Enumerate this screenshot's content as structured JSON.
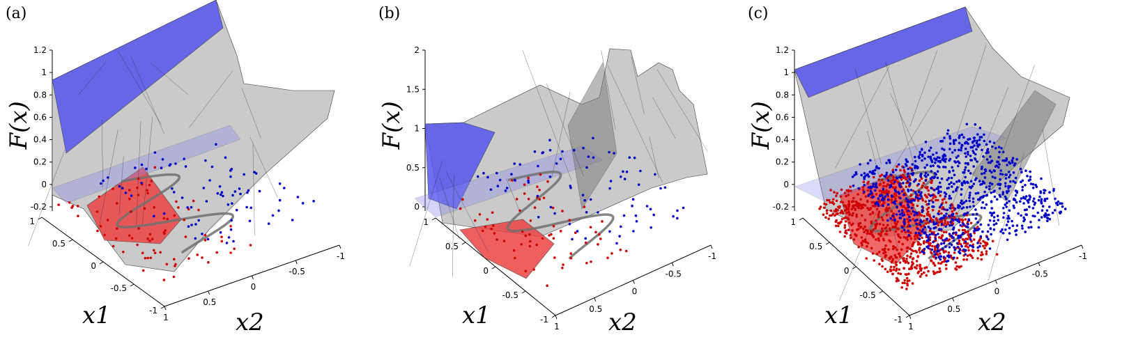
{
  "chart_data": [
    {
      "type": "scatter",
      "panel_label": "(a)",
      "zlabel": "F(x)",
      "xlabel": "x1",
      "ylabel": "x2",
      "x1_ticks": [
        "1",
        "0.5",
        "0",
        "-0.5",
        "-1"
      ],
      "x2_ticks": [
        "1",
        "0.5",
        "0",
        "-0.5",
        "-1"
      ],
      "z_ticks": [
        "-0.2",
        "0",
        "0.2",
        "0.4",
        "0.6",
        "0.8",
        "1",
        "1.2"
      ],
      "zlim": [
        -0.2,
        1.2
      ],
      "series": [
        {
          "color": "#d00000",
          "count": 80
        },
        {
          "color": "#0000c8",
          "count": 80
        }
      ],
      "colors": {
        "surface": "#c8c8c8",
        "high_region": "#5555ee",
        "low_region": "#ee4444",
        "curve": "#707070"
      }
    },
    {
      "type": "scatter",
      "panel_label": "(b)",
      "zlabel": "F(x)",
      "xlabel": "x1",
      "ylabel": "x2",
      "x1_ticks": [
        "1",
        "0.5",
        "0",
        "-0.5",
        "-1"
      ],
      "x2_ticks": [
        "1",
        "0.5",
        "0",
        "-0.5",
        "-1"
      ],
      "z_ticks": [
        "0",
        "0.5",
        "1",
        "1.5",
        "2"
      ],
      "zlim": [
        0,
        2
      ],
      "series": [
        {
          "color": "#d00000",
          "count": 70
        },
        {
          "color": "#0000c8",
          "count": 80
        }
      ],
      "colors": {
        "surface": "#c8c8c8",
        "high_region": "#5555ee",
        "low_region": "#ee4444",
        "curve": "#707070"
      }
    },
    {
      "type": "scatter",
      "panel_label": "(c)",
      "zlabel": "F(x)",
      "xlabel": "x1",
      "ylabel": "x2",
      "x1_ticks": [
        "1",
        "0.5",
        "0",
        "-0.5",
        "-1"
      ],
      "x2_ticks": [
        "1",
        "0.5",
        "0",
        "-0.5",
        "-1"
      ],
      "z_ticks": [
        "-0.2",
        "0",
        "0.2",
        "0.4",
        "0.6",
        "0.8",
        "1",
        "1.2"
      ],
      "zlim": [
        -0.2,
        1.2
      ],
      "series": [
        {
          "color": "#d00000",
          "count": 900
        },
        {
          "color": "#0000c8",
          "count": 900
        }
      ],
      "colors": {
        "surface": "#c8c8c8",
        "high_region": "#5555ee",
        "low_region": "#ee4444",
        "curve": "#707070"
      }
    }
  ]
}
